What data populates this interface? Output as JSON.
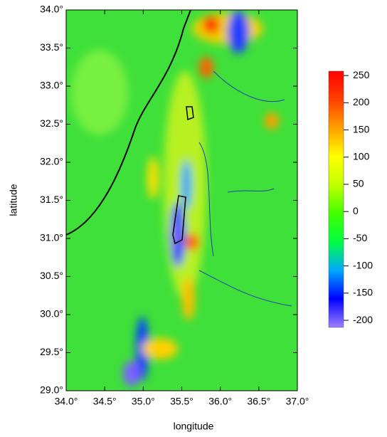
{
  "chart_data": {
    "type": "heatmap",
    "xlabel": "longitude",
    "ylabel": "latitude",
    "xlim": [
      34,
      37
    ],
    "ylim": [
      29,
      34
    ],
    "xticks": [
      {
        "value": 34,
        "label": "34.0°"
      },
      {
        "value": 34.5,
        "label": "34.5°"
      },
      {
        "value": 35,
        "label": "35.0°"
      },
      {
        "value": 35.5,
        "label": "35.5°"
      },
      {
        "value": 36,
        "label": "36.0°"
      },
      {
        "value": 36.5,
        "label": "36.5°"
      },
      {
        "value": 37,
        "label": "37.0°"
      }
    ],
    "yticks": [
      {
        "value": 29,
        "label": "29.0°"
      },
      {
        "value": 29.5,
        "label": "29.5°"
      },
      {
        "value": 30,
        "label": "30.0°"
      },
      {
        "value": 30.5,
        "label": "30.5°"
      },
      {
        "value": 31,
        "label": "31.0°"
      },
      {
        "value": 31.5,
        "label": "31.5°"
      },
      {
        "value": 32,
        "label": "32.0°"
      },
      {
        "value": 32.5,
        "label": "32.5°"
      },
      {
        "value": 33,
        "label": "33.0°"
      },
      {
        "value": 33.5,
        "label": "33.5°"
      },
      {
        "value": 34,
        "label": "34.0°"
      }
    ],
    "colorbar": {
      "lim": [
        -213,
        258
      ],
      "ticks": [
        250,
        200,
        150,
        100,
        50,
        0,
        -50,
        -100,
        -150,
        -200
      ],
      "colors": [
        "#9f7fff",
        "#0000ff",
        "#00a8ff",
        "#00ff40",
        "#40ff00",
        "#c0ff00",
        "#ffff00",
        "#ffa000",
        "#ff4000",
        "#ff0000"
      ]
    }
  }
}
